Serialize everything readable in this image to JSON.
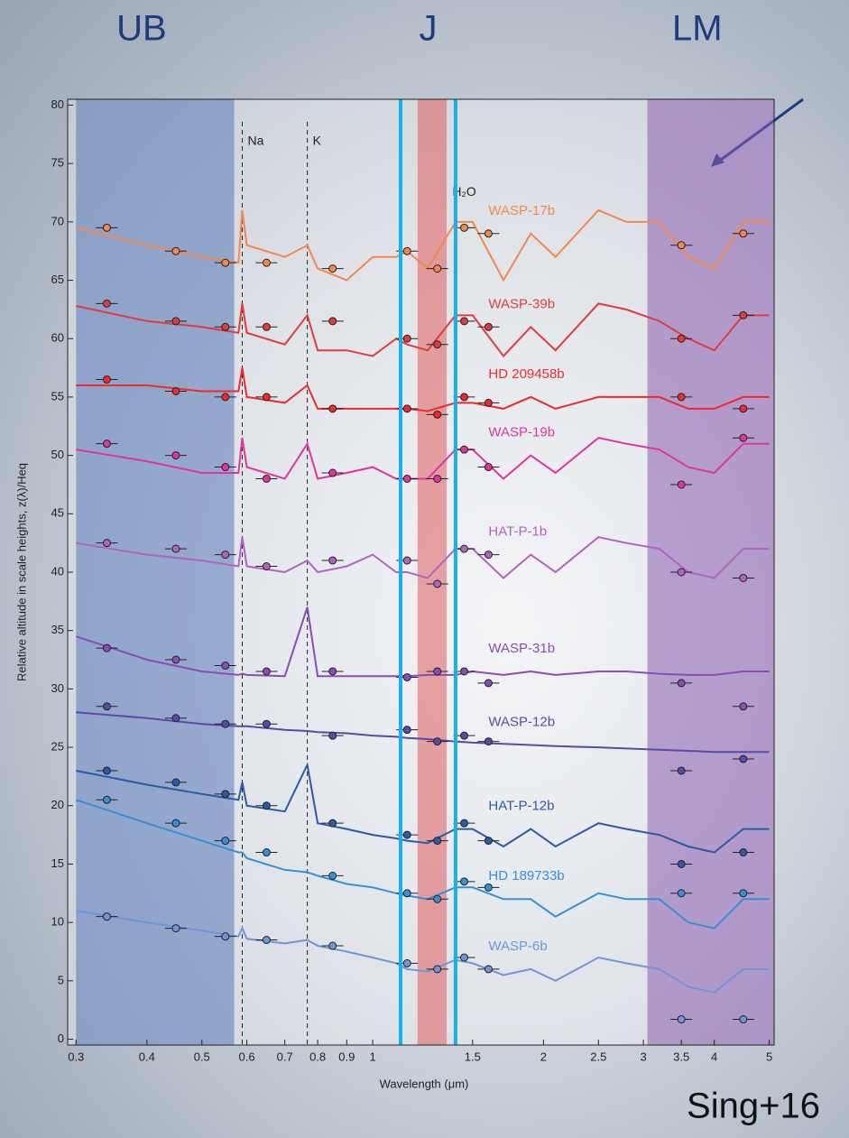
{
  "chart_data": {
    "type": "line",
    "xlabel": "Wavelength (μm)",
    "ylabel": "Relative altitude in scale heights, z(λ)/Heq",
    "xscale": "log",
    "xlim": [
      0.29,
      5.1
    ],
    "ylim": [
      -0.5,
      80.5
    ],
    "xticks": [
      0.3,
      0.4,
      0.5,
      0.6,
      0.7,
      0.8,
      0.9,
      1,
      1.5,
      2,
      2.5,
      3,
      3.5,
      4,
      5
    ],
    "yticks": [
      0,
      5,
      10,
      15,
      20,
      25,
      30,
      35,
      40,
      45,
      50,
      55,
      60,
      65,
      70,
      75,
      80
    ],
    "regions": [
      {
        "label": "UB",
        "xrange": [
          0.3,
          0.57
        ],
        "color": "#5a78b8",
        "style": "band"
      },
      {
        "label": "J",
        "xrange": [
          1.12,
          1.4
        ],
        "color": "#1ab0e8",
        "style": "lines"
      },
      {
        "label": "LM",
        "xrange": [
          3.05,
          5.1
        ],
        "color": "#8a5cb0",
        "style": "band"
      }
    ],
    "highlight": {
      "xrange": [
        1.2,
        1.35
      ],
      "color": "#e05050"
    },
    "reference_lines": [
      {
        "label": "Na",
        "x": 0.589
      },
      {
        "label": "K",
        "x": 0.767
      }
    ],
    "annotations": [
      {
        "text": "H₂O",
        "x": 1.45,
        "y": 72.5
      }
    ],
    "credit": "Sing+16",
    "x": [
      0.3,
      0.4,
      0.5,
      0.58,
      0.589,
      0.6,
      0.7,
      0.767,
      0.8,
      0.9,
      1.0,
      1.1,
      1.15,
      1.25,
      1.4,
      1.5,
      1.7,
      1.9,
      2.1,
      2.5,
      2.8,
      3.2,
      3.6,
      4.0,
      4.5,
      5.0
    ],
    "obs_x": [
      0.34,
      0.45,
      0.55,
      0.65,
      0.85,
      1.15,
      1.3,
      1.45,
      1.6,
      3.5,
      4.5
    ],
    "series": [
      {
        "name": "WASP-17b",
        "color": "#f7864a",
        "values": [
          69.5,
          68,
          67,
          66.5,
          71,
          68,
          67,
          68,
          66,
          65,
          67,
          67,
          67.5,
          66,
          70,
          70,
          65,
          69,
          67,
          71,
          70,
          70,
          67,
          66,
          70,
          70
        ],
        "obs": [
          69.5,
          67.5,
          66.5,
          66.5,
          66,
          67.5,
          66,
          69.5,
          69,
          68,
          69
        ]
      },
      {
        "name": "WASP-39b",
        "color": "#e03c3c",
        "values": [
          62.8,
          61.5,
          61,
          60.5,
          63,
          60.5,
          59.5,
          62,
          59,
          59,
          58.5,
          60,
          59.5,
          59,
          62,
          62,
          58.5,
          61,
          59,
          63,
          62.5,
          61.5,
          60,
          59,
          62,
          62
        ],
        "obs": [
          63,
          61.5,
          61,
          61,
          61.5,
          60,
          59.5,
          61.5,
          61,
          60,
          62
        ]
      },
      {
        "name": "HD 209458b",
        "color": "#ee2a2a",
        "values": [
          56,
          56,
          55.5,
          55.5,
          57.5,
          55,
          54.5,
          56,
          54,
          54,
          54,
          54,
          54,
          53.8,
          54.5,
          54.5,
          54,
          55,
          54,
          55,
          55,
          55,
          54,
          54,
          55,
          55
        ],
        "obs": [
          56.5,
          55.5,
          55,
          55,
          54,
          54,
          53.5,
          55,
          54.5,
          55,
          54
        ]
      },
      {
        "name": "WASP-19b",
        "color": "#e0359a",
        "values": [
          50.5,
          49.5,
          48.5,
          48.5,
          51.5,
          49,
          48,
          51,
          48,
          48.5,
          49,
          48,
          48,
          48,
          50.5,
          50.5,
          48,
          50,
          48.5,
          51.5,
          51,
          50.5,
          49,
          48.5,
          51,
          51
        ],
        "obs": [
          51,
          50,
          49,
          48,
          48.5,
          48,
          48,
          50.5,
          49,
          47.5,
          51.5
        ]
      },
      {
        "name": "HAT-P-1b",
        "color": "#b064c0",
        "values": [
          42.5,
          41.5,
          41,
          40.5,
          43,
          40.5,
          40,
          41,
          40,
          40.5,
          41.5,
          40,
          40,
          39.5,
          42,
          42,
          39.5,
          41.5,
          40,
          43,
          42.5,
          42,
          40,
          39.5,
          42,
          42
        ],
        "obs": [
          42.5,
          42,
          41.5,
          40.5,
          41,
          41,
          39,
          42,
          41.5,
          40,
          39.5
        ]
      },
      {
        "name": "WASP-31b",
        "color": "#8a4cb8",
        "values": [
          34.5,
          32.5,
          31.5,
          31.2,
          31.3,
          31.2,
          31.1,
          37,
          31.1,
          31.1,
          31.1,
          31.1,
          31.1,
          31.2,
          31.2,
          31.5,
          31.2,
          31.5,
          31.2,
          31.5,
          31.5,
          31.3,
          31.2,
          31.2,
          31.5,
          31.5
        ],
        "obs": [
          33.5,
          32.5,
          32,
          31.5,
          31.5,
          31,
          31.5,
          31.5,
          30.5,
          30.5,
          28.5
        ]
      },
      {
        "name": "WASP-12b",
        "color": "#5a4aa8",
        "values": [
          28,
          27.5,
          27,
          26.8,
          26.8,
          26.8,
          26.5,
          26.4,
          26.3,
          26.2,
          26,
          25.9,
          25.8,
          25.7,
          25.5,
          25.4,
          25.3,
          25.2,
          25.1,
          25,
          24.9,
          24.8,
          24.7,
          24.6,
          24.6,
          24.6
        ],
        "obs": [
          28.5,
          27.5,
          27,
          27,
          26,
          26.5,
          25.5,
          26,
          25.5,
          23,
          24
        ]
      },
      {
        "name": "HAT-P-12b",
        "color": "#2b5aa8",
        "values": [
          23,
          21.8,
          21,
          20.5,
          22,
          20,
          19.5,
          23.5,
          18.5,
          18,
          17.5,
          17.2,
          17,
          16.8,
          18,
          18,
          16.5,
          18,
          16.5,
          18.5,
          18,
          17.5,
          16.5,
          16,
          18,
          18
        ],
        "obs": [
          23,
          22,
          21,
          20,
          18.5,
          17.5,
          17,
          18.5,
          17,
          15,
          16
        ]
      },
      {
        "name": "HD 189733b",
        "color": "#3590d8",
        "values": [
          20.5,
          18.5,
          17,
          16,
          16,
          15.5,
          14.5,
          14.3,
          14,
          13.3,
          13,
          12.5,
          12.3,
          12,
          13,
          13,
          12,
          12,
          10.5,
          12.5,
          12,
          12,
          10,
          9.5,
          12,
          12
        ],
        "obs": [
          20.5,
          18.5,
          17,
          16,
          14,
          12.5,
          12,
          13.5,
          13,
          12.5,
          12.5
        ]
      },
      {
        "name": "WASP-6b",
        "color": "#6f96d8",
        "values": [
          11,
          10,
          9.3,
          8.8,
          9.5,
          8.6,
          8.2,
          8.5,
          8,
          7.5,
          7,
          6.5,
          6,
          5.8,
          6.8,
          6.5,
          5.5,
          6,
          5,
          7,
          6.5,
          6,
          4.5,
          4,
          6,
          6
        ],
        "obs": [
          10.5,
          9.5,
          8.8,
          8.5,
          8,
          6.5,
          6,
          7,
          6,
          1.7,
          1.7
        ]
      }
    ]
  }
}
